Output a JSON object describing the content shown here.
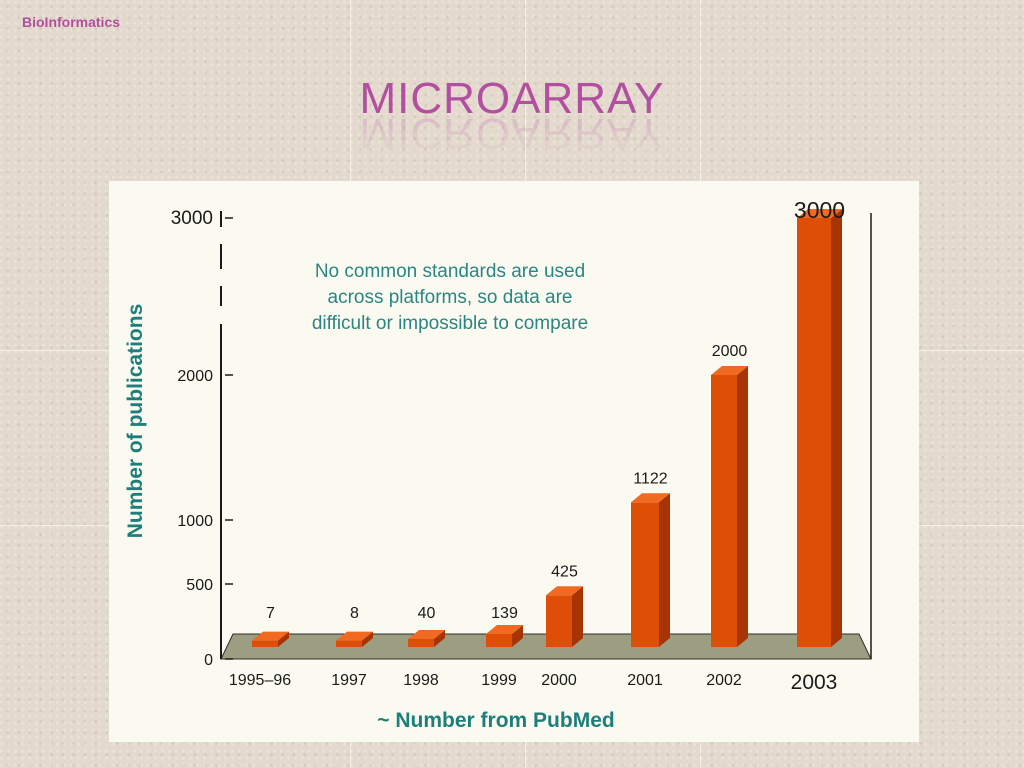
{
  "header": {
    "brand": "BioInformatics",
    "title": "MICROARRAY"
  },
  "colors": {
    "title": "#b24fa0",
    "brand": "#b0509c",
    "bar_front": "#de4e06",
    "bar_side": "#a83404",
    "bar_top": "#f06a22",
    "floor": "#9c9e82",
    "axis_label": "#1e7e7a",
    "annotation": "#2a8583"
  },
  "chart_data": {
    "type": "bar",
    "categories": [
      "1995–96",
      "1997",
      "1998",
      "1999",
      "2000",
      "2001",
      "2002",
      "2003"
    ],
    "values": [
      7,
      8,
      40,
      139,
      425,
      1122,
      2000,
      3000
    ],
    "data_labels": [
      "7",
      "8",
      "40",
      "139",
      "425",
      "1122",
      "2000",
      "3000"
    ],
    "ylabel": "Number of publications",
    "xlabel": "~ Number from PubMed",
    "y_ticks": [
      0,
      500,
      1000,
      2000,
      3000
    ],
    "y_tick_labels": [
      "0",
      "500",
      "1000",
      "2000",
      "3000"
    ],
    "ylim": [
      0,
      3000
    ],
    "grid": false,
    "annotation": [
      "No common standards are used",
      "across platforms, so data are",
      "difficult or impossible to compare"
    ]
  }
}
